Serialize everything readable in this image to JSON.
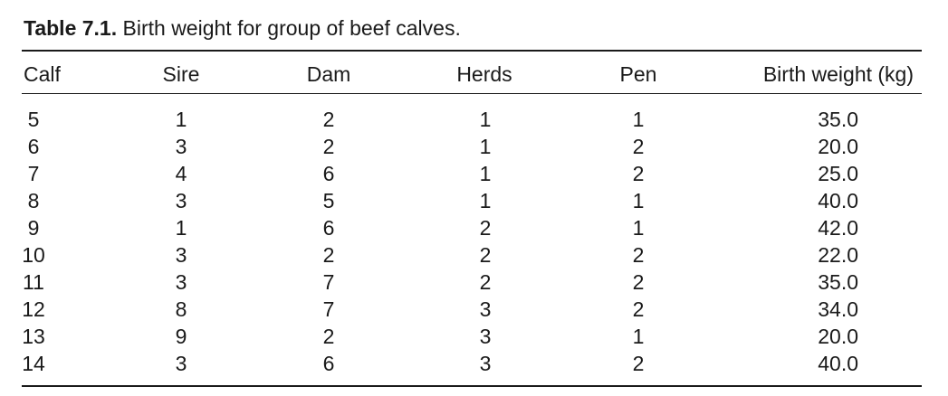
{
  "caption": {
    "label": "Table 7.1.",
    "text": "Birth weight for group of beef calves."
  },
  "columns": [
    "Calf",
    "Sire",
    "Dam",
    "Herds",
    "Pen",
    "Birth weight (kg)"
  ],
  "rows": [
    [
      "5",
      "1",
      "2",
      "1",
      "1",
      "35.0"
    ],
    [
      "6",
      "3",
      "2",
      "1",
      "2",
      "20.0"
    ],
    [
      "7",
      "4",
      "6",
      "1",
      "2",
      "25.0"
    ],
    [
      "8",
      "3",
      "5",
      "1",
      "1",
      "40.0"
    ],
    [
      "9",
      "1",
      "6",
      "2",
      "1",
      "42.0"
    ],
    [
      "10",
      "3",
      "2",
      "2",
      "2",
      "22.0"
    ],
    [
      "11",
      "3",
      "7",
      "2",
      "2",
      "35.0"
    ],
    [
      "12",
      "8",
      "7",
      "3",
      "2",
      "34.0"
    ],
    [
      "13",
      "9",
      "2",
      "3",
      "1",
      "20.0"
    ],
    [
      "14",
      "3",
      "6",
      "3",
      "2",
      "40.0"
    ]
  ]
}
